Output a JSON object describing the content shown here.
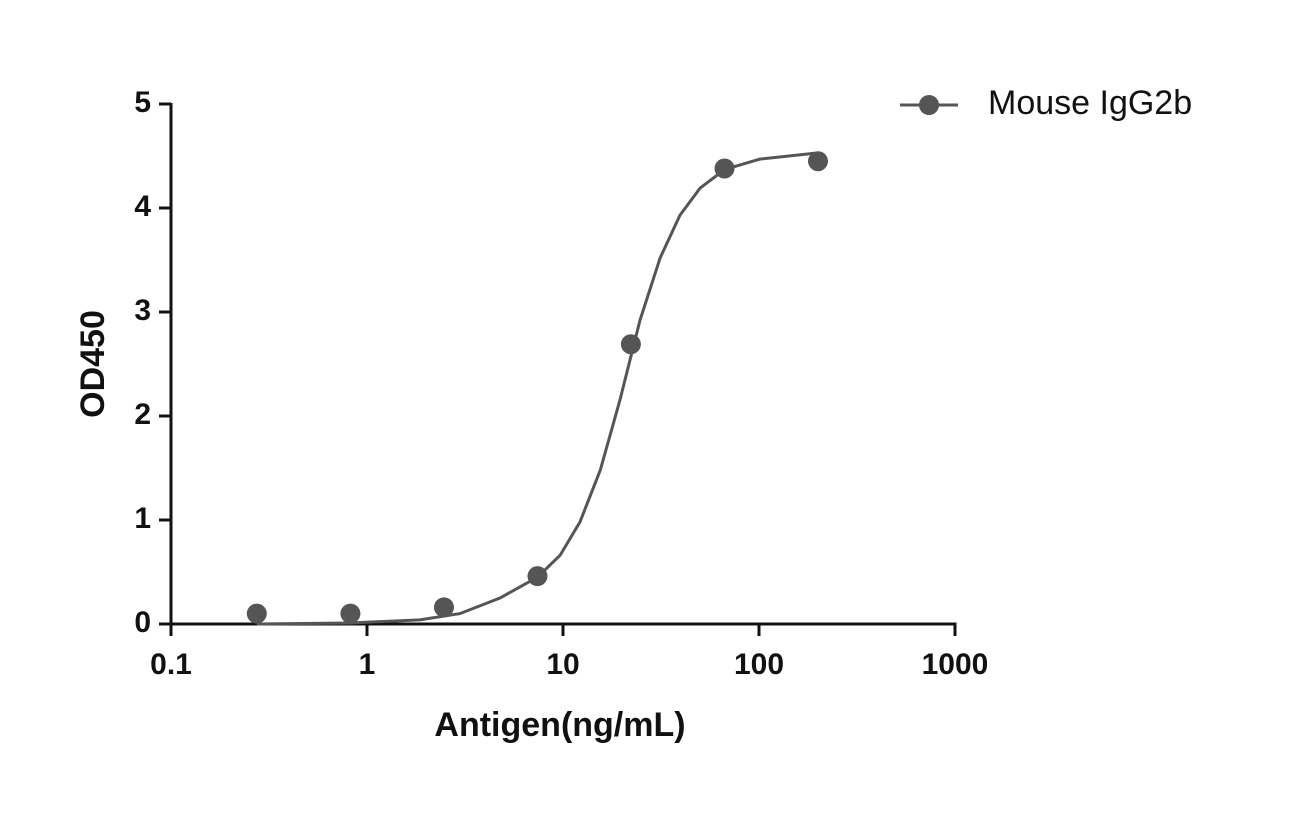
{
  "chart_data": {
    "type": "scatter",
    "xlabel": "Antigen(ng/mL)",
    "ylabel": "OD450",
    "xscale": "log",
    "xlim": [
      0.1,
      1000
    ],
    "xticks": [
      0.1,
      1,
      10,
      100,
      1000
    ],
    "ylim": [
      0,
      5
    ],
    "yticks": [
      0,
      1,
      2,
      3,
      4,
      5
    ],
    "grid": false,
    "legend": "upper right",
    "series": [
      {
        "name": "Mouse IgG2b",
        "color": "#555555",
        "x": [
          0.274,
          0.823,
          2.47,
          7.41,
          22.2,
          66.7,
          200
        ],
        "values": [
          0.1,
          0.1,
          0.16,
          0.46,
          2.69,
          4.38,
          4.45
        ],
        "fit": {
          "x": [
            0.274,
            0.82,
            1.86,
            2.98,
            4.77,
            7.41,
            9.66,
            12.2,
            15.5,
            19.5,
            24.7,
            31.3,
            39.5,
            50,
            66.7,
            101,
            200
          ],
          "y": [
            0,
            0.01,
            0.04,
            0.1,
            0.25,
            0.45,
            0.66,
            0.98,
            1.48,
            2.15,
            2.92,
            3.52,
            3.93,
            4.19,
            4.37,
            4.47,
            4.53
          ]
        }
      }
    ]
  }
}
